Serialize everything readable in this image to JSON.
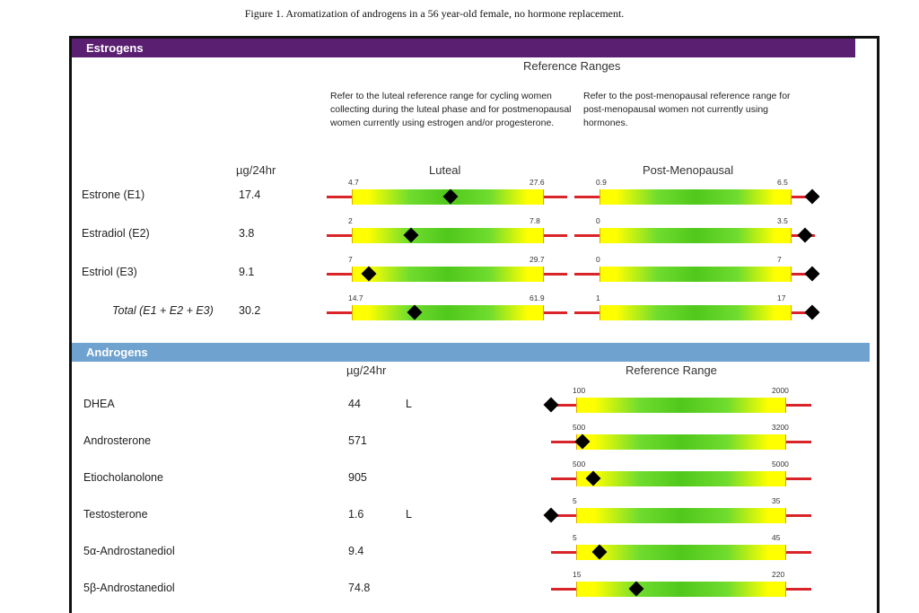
{
  "caption": "Figure 1. Aromatization of androgens in a 56 year-old female, no hormone replacement.",
  "estrogens": {
    "title": "Estrogens",
    "reference_title": "Reference Ranges",
    "note_luteal": "Refer to the luteal reference range for cycling women collecting during the luteal phase and for postmenopausal women currently using estrogen and/or progesterone.",
    "note_postmeno": "Refer to the post-menopausal reference range for post-menopausal women not currently using hormones.",
    "unit": "µg/24hr",
    "col_luteal": "Luteal",
    "col_postmeno": "Post-Menopausal",
    "rows": [
      {
        "label": "Estrone (E1)",
        "value": "17.4",
        "luteal": {
          "low": "4.7",
          "high": "27.6",
          "marker_pct": 0.52
        },
        "post": {
          "low": "0.9",
          "high": "6.5",
          "marker_pct": 1.12
        }
      },
      {
        "label": "Estradiol (E2)",
        "value": "3.8",
        "luteal": {
          "low": "2",
          "high": "7.8",
          "marker_pct": 0.31
        },
        "post": {
          "low": "0",
          "high": "3.5",
          "marker_pct": 1.08
        }
      },
      {
        "label": "Estriol (E3)",
        "value": "9.1",
        "luteal": {
          "low": "7",
          "high": "29.7",
          "marker_pct": 0.09
        },
        "post": {
          "low": "0",
          "high": "7",
          "marker_pct": 1.12
        }
      },
      {
        "label": "Total (E1 + E2 + E3)",
        "value": "30.2",
        "luteal": {
          "low": "14.7",
          "high": "61.9",
          "marker_pct": 0.33
        },
        "post": {
          "low": "1",
          "high": "17",
          "marker_pct": 1.12
        }
      }
    ]
  },
  "androgens": {
    "title": "Androgens",
    "unit": "µg/24hr",
    "reference_title": "Reference Range",
    "rows": [
      {
        "label": "DHEA",
        "value": "44",
        "flag": "L",
        "low": "100",
        "high": "2000",
        "marker_pct": -0.12
      },
      {
        "label": "Androsterone",
        "value": "571",
        "flag": "",
        "low": "500",
        "high": "3200",
        "marker_pct": 0.03
      },
      {
        "label": "Etiocholanolone",
        "value": "905",
        "flag": "",
        "low": "500",
        "high": "5000",
        "marker_pct": 0.08
      },
      {
        "label": "Testosterone",
        "value": "1.6",
        "flag": "L",
        "low": "5",
        "high": "35",
        "marker_pct": -0.12
      },
      {
        "label": "5α-Androstanediol",
        "value": "9.4",
        "flag": "",
        "low": "5",
        "high": "45",
        "marker_pct": 0.11
      },
      {
        "label": "5β-Androstanediol",
        "value": "74.8",
        "flag": "",
        "low": "15",
        "high": "220",
        "marker_pct": 0.29
      }
    ]
  },
  "colors": {
    "estrogen_band": "#5b1f72",
    "androgen_band": "#6fa2cf",
    "range_line": "#d9252a",
    "marker": "#000000"
  }
}
